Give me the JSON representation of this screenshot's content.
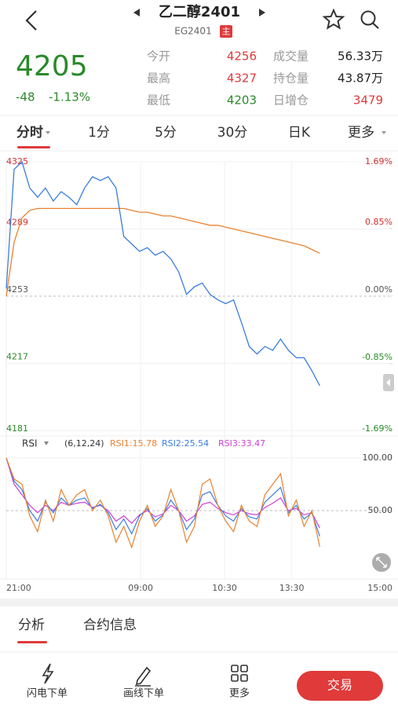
{
  "header": {
    "title": "乙二醇2401",
    "code": "EG2401",
    "badge": "主"
  },
  "quote": {
    "price": 4205,
    "change": -48,
    "change_pct": "-1.13%"
  },
  "stats": [
    {
      "label": "今开",
      "value": 4256
    },
    {
      "label": "最高",
      "value": 4327
    },
    {
      "label": "最低",
      "value": 4203
    },
    {
      "label": "成交量",
      "value": "56.33万"
    },
    {
      "label": "持仓量",
      "value": "43.87万"
    },
    {
      "label": "日增仓",
      "value": 3479
    }
  ],
  "tabs": [
    "分时",
    "1分",
    "5分",
    "30分",
    "日K",
    "更多"
  ],
  "price_chart": {
    "type": "line",
    "ylim": [
      4181,
      4325
    ],
    "yticks": [
      4325,
      4289,
      4253,
      4217,
      4181
    ],
    "y2lim": [
      -1.69,
      1.69
    ],
    "y2ticks": [
      {
        "value": 1.69,
        "label": "1.69%"
      },
      {
        "value": 0.85,
        "label": "0.85%"
      },
      {
        "value": 0.0,
        "label": "0.00%"
      },
      {
        "value": -0.85,
        "label": "-0.85%"
      },
      {
        "value": -1.69,
        "label": "-1.69%"
      }
    ],
    "xlim": [
      0,
      345
    ],
    "xticks": [
      {
        "value": 0,
        "label": "21:00"
      },
      {
        "value": 120,
        "label": "09:00"
      },
      {
        "value": 195,
        "label": "10:30"
      },
      {
        "value": 255,
        "label": "13:30"
      },
      {
        "value": 345,
        "label": "15:00"
      }
    ],
    "x": [
      0,
      7,
      14,
      21,
      28,
      35,
      42,
      49,
      56,
      63,
      70,
      77,
      84,
      91,
      98,
      105,
      112,
      119,
      126,
      133,
      140,
      147,
      154,
      161,
      168,
      175,
      182,
      189,
      196,
      203,
      210,
      217,
      224,
      231,
      238,
      245,
      252,
      259,
      266,
      273,
      280
    ],
    "series": [
      {
        "color": "#3b7ddd",
        "values": [
          4257,
          4321,
          4325,
          4311,
          4306,
          4311,
          4304,
          4309,
          4306,
          4302,
          4311,
          4317,
          4315,
          4317,
          4311,
          4285,
          4281,
          4277,
          4279,
          4275,
          4277,
          4273,
          4266,
          4254,
          4258,
          4260,
          4254,
          4251,
          4249,
          4251,
          4239,
          4226,
          4222,
          4226,
          4224,
          4230,
          4224,
          4220,
          4220,
          4213,
          4205
        ]
      },
      {
        "color": "#e8812f",
        "values": [
          4253,
          4282,
          4295,
          4299,
          4300,
          4300,
          4300,
          4300,
          4300,
          4300,
          4300,
          4300,
          4300,
          4300,
          4300,
          4300,
          4299,
          4298,
          4298,
          4297,
          4296,
          4296,
          4295,
          4294,
          4293,
          4292,
          4291,
          4291,
          4290,
          4289,
          4288,
          4287,
          4286,
          4285,
          4284,
          4283,
          4282,
          4281,
          4280,
          4278,
          4276
        ]
      }
    ]
  },
  "rsi_chart": {
    "type": "line",
    "title": "RSI",
    "params": "(6,12,24)",
    "ylim": [
      0,
      100
    ],
    "yticks": [
      {
        "value": 100,
        "label": "100.00"
      },
      {
        "value": 50,
        "label": "50.00"
      }
    ],
    "series": [
      {
        "name": "RSI1:15.78",
        "color": "#e8812f",
        "values": [
          100,
          80,
          75,
          45,
          30,
          60,
          40,
          70,
          55,
          65,
          70,
          50,
          60,
          45,
          20,
          35,
          15,
          40,
          55,
          35,
          45,
          70,
          50,
          20,
          35,
          75,
          80,
          55,
          40,
          30,
          55,
          40,
          35,
          65,
          75,
          85,
          45,
          60,
          35,
          50,
          15.78
        ]
      },
      {
        "name": "RSI2:25.54",
        "color": "#3b7ddd",
        "values": [
          100,
          78,
          70,
          50,
          40,
          58,
          48,
          62,
          55,
          60,
          62,
          52,
          56,
          48,
          32,
          42,
          28,
          45,
          52,
          40,
          46,
          60,
          50,
          32,
          42,
          65,
          68,
          55,
          45,
          40,
          52,
          44,
          42,
          58,
          65,
          72,
          48,
          55,
          42,
          48,
          25.54
        ]
      },
      {
        "name": "RSI3:33.47",
        "color": "#d040d8",
        "values": [
          100,
          75,
          65,
          55,
          48,
          55,
          50,
          58,
          55,
          57,
          58,
          53,
          55,
          50,
          40,
          45,
          38,
          46,
          50,
          44,
          47,
          55,
          50,
          40,
          45,
          56,
          58,
          52,
          48,
          46,
          50,
          47,
          46,
          53,
          57,
          62,
          50,
          52,
          46,
          48,
          33.47
        ]
      }
    ]
  },
  "detail_tabs": [
    "分析",
    "合约信息"
  ],
  "bottom_nav": [
    "闪电下单",
    "画线下单",
    "更多"
  ],
  "trade_button": "交易"
}
